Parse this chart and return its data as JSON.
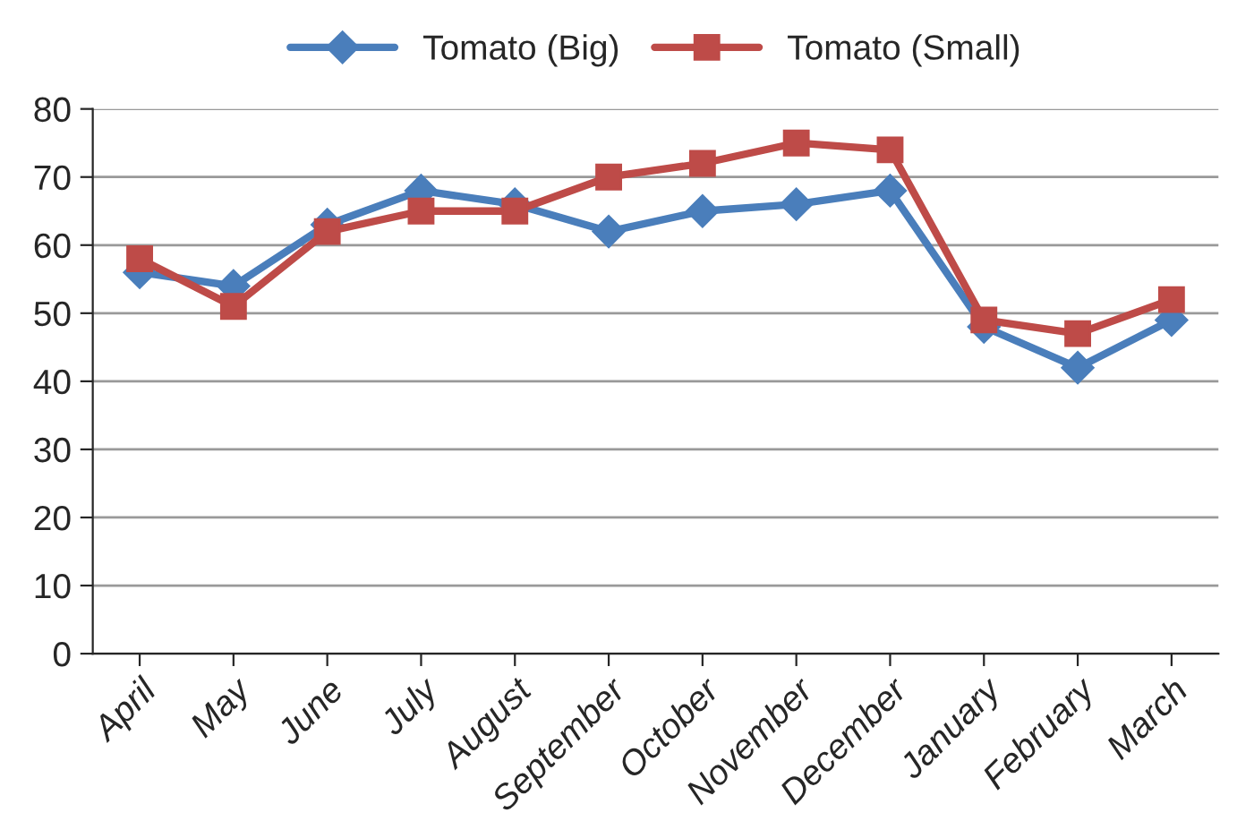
{
  "chart_data": {
    "type": "line",
    "categories": [
      "April",
      "May",
      "June",
      "July",
      "August",
      "September",
      "October",
      "November",
      "December",
      "January",
      "February",
      "March"
    ],
    "series": [
      {
        "name": "Tomato (Big)",
        "color": "#4a7ebb",
        "marker": "diamond",
        "values": [
          56,
          54,
          63,
          68,
          66,
          62,
          65,
          66,
          68,
          48,
          42,
          49
        ]
      },
      {
        "name": "Tomato (Small)",
        "color": "#be4b48",
        "marker": "square",
        "values": [
          58,
          51,
          62,
          65,
          65,
          70,
          72,
          75,
          74,
          49,
          47,
          52
        ]
      }
    ],
    "ylim": [
      0,
      80
    ],
    "yticks": [
      0,
      10,
      20,
      30,
      40,
      50,
      60,
      70,
      80
    ],
    "grid": "y",
    "legend": "top",
    "line_style": "solid"
  }
}
